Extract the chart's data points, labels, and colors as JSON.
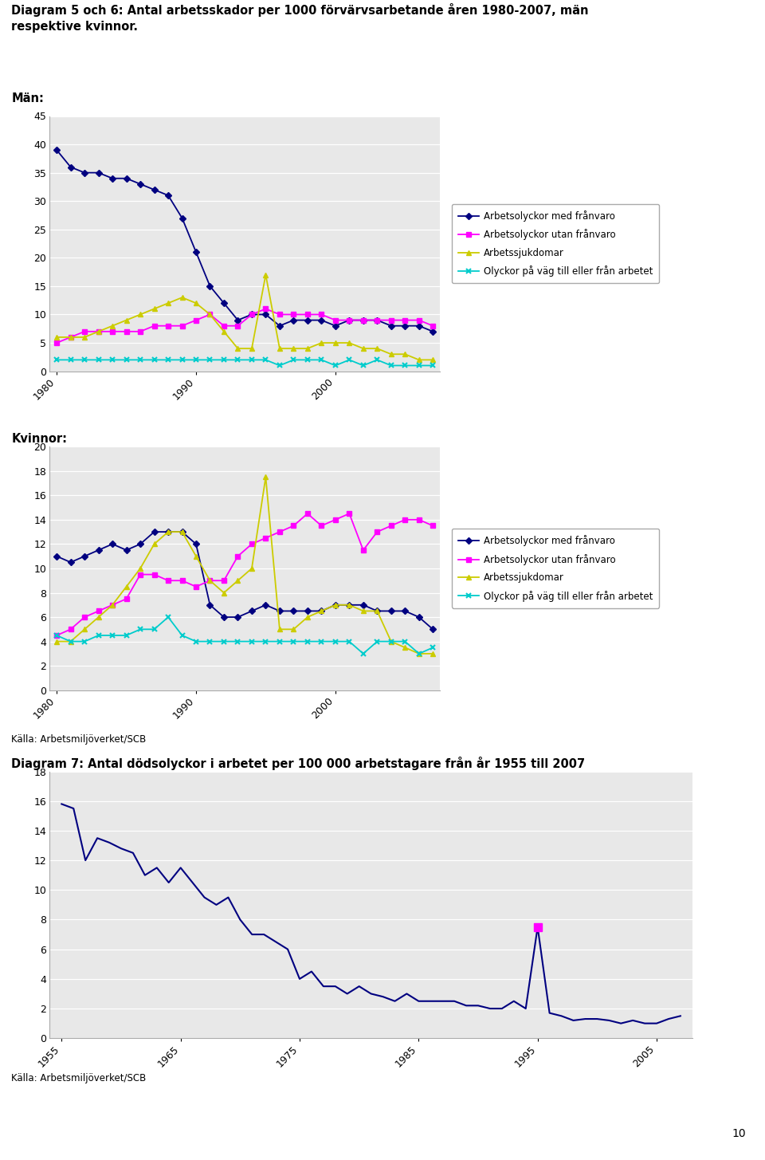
{
  "title_main": "Diagram 5 och 6: Antal arbetsskador per 1000 förvärvsarbetande åren 1980-2007, män\nrespektive kvinnor.",
  "label_man": "Män:",
  "label_kvinna": "Kvinnor:",
  "legend_labels": [
    "Arbetsolyckor med frånvaro",
    "Arbetsolyckor utan frånvaro",
    "Arbetssjukdomar",
    "Olyckor på väg till eller från arbetet"
  ],
  "legend_colors": [
    "#000080",
    "#FF00FF",
    "#CCCC00",
    "#00CCCC"
  ],
  "legend_markers": [
    "D",
    "s",
    "^",
    "*"
  ],
  "years_man": [
    1980,
    1981,
    1982,
    1983,
    1984,
    1985,
    1986,
    1987,
    1988,
    1989,
    1990,
    1991,
    1992,
    1993,
    1994,
    1995,
    1996,
    1997,
    1998,
    1999,
    2000,
    2001,
    2002,
    2003,
    2004,
    2005,
    2006,
    2007
  ],
  "man_med_franvaro": [
    39,
    36,
    35,
    35,
    34,
    34,
    33,
    32,
    31,
    27,
    21,
    15,
    12,
    9,
    10,
    10,
    8,
    9,
    9,
    9,
    8,
    9,
    9,
    9,
    8,
    8,
    8,
    7
  ],
  "man_utan_franvaro": [
    5,
    6,
    7,
    7,
    7,
    7,
    7,
    8,
    8,
    8,
    9,
    10,
    8,
    8,
    10,
    11,
    10,
    10,
    10,
    10,
    9,
    9,
    9,
    9,
    9,
    9,
    9,
    8
  ],
  "man_arbetssjukdomar": [
    6,
    6,
    6,
    7,
    8,
    9,
    10,
    11,
    12,
    13,
    12,
    10,
    7,
    4,
    4,
    17,
    4,
    4,
    4,
    5,
    5,
    5,
    4,
    4,
    3,
    3,
    2,
    2
  ],
  "man_olyckor_vag": [
    2,
    2,
    2,
    2,
    2,
    2,
    2,
    2,
    2,
    2,
    2,
    2,
    2,
    2,
    2,
    2,
    1,
    2,
    2,
    2,
    1,
    2,
    1,
    2,
    1,
    1,
    1,
    1
  ],
  "man_ylim": [
    0,
    45
  ],
  "man_yticks": [
    0,
    5,
    10,
    15,
    20,
    25,
    30,
    35,
    40,
    45
  ],
  "years_kvinna": [
    1980,
    1981,
    1982,
    1983,
    1984,
    1985,
    1986,
    1987,
    1988,
    1989,
    1990,
    1991,
    1992,
    1993,
    1994,
    1995,
    1996,
    1997,
    1998,
    1999,
    2000,
    2001,
    2002,
    2003,
    2004,
    2005,
    2006,
    2007
  ],
  "kvinna_med_franvaro": [
    11,
    10.5,
    11,
    11.5,
    12,
    11.5,
    12,
    13,
    13,
    13,
    12,
    7,
    6,
    6,
    6.5,
    7,
    6.5,
    6.5,
    6.5,
    6.5,
    7,
    7,
    7,
    6.5,
    6.5,
    6.5,
    6,
    5
  ],
  "kvinna_utan_franvaro": [
    4.5,
    5,
    6,
    6.5,
    7,
    7.5,
    9.5,
    9.5,
    9,
    9,
    8.5,
    9,
    9,
    11,
    12,
    12.5,
    13,
    13.5,
    14.5,
    13.5,
    14,
    14.5,
    11.5,
    13,
    13.5,
    14,
    14,
    13.5
  ],
  "kvinna_arbetssjukdomar": [
    4,
    4,
    5,
    6,
    7,
    8.5,
    10,
    12,
    13,
    13,
    11,
    9,
    8,
    9,
    10,
    17.5,
    5,
    5,
    6,
    6.5,
    7,
    7,
    6.5,
    6.5,
    4,
    3.5,
    3,
    3
  ],
  "kvinna_olyckor_vag": [
    4.5,
    4,
    4,
    4.5,
    4.5,
    4.5,
    5,
    5,
    6,
    4.5,
    4,
    4,
    4,
    4,
    4,
    4,
    4,
    4,
    4,
    4,
    4,
    4,
    3,
    4,
    4,
    4,
    3,
    3.5
  ],
  "kvinna_ylim": [
    0,
    20
  ],
  "kvinna_yticks": [
    0,
    2,
    4,
    6,
    8,
    10,
    12,
    14,
    16,
    18,
    20
  ],
  "title_diag7": "Diagram 7: Antal dödsolyckor i arbetet per 100 000 arbetstagare från år 1955 till 2007",
  "years_diag7": [
    1955,
    1956,
    1957,
    1958,
    1959,
    1960,
    1961,
    1962,
    1963,
    1964,
    1965,
    1966,
    1967,
    1968,
    1969,
    1970,
    1971,
    1972,
    1973,
    1974,
    1975,
    1976,
    1977,
    1978,
    1979,
    1980,
    1981,
    1982,
    1983,
    1984,
    1985,
    1986,
    1987,
    1988,
    1989,
    1990,
    1991,
    1992,
    1993,
    1994,
    1995,
    1996,
    1997,
    1998,
    1999,
    2000,
    2001,
    2002,
    2003,
    2004,
    2005,
    2006,
    2007
  ],
  "diag7_values": [
    15.8,
    15.5,
    12.0,
    13.5,
    13.2,
    12.8,
    12.5,
    11.0,
    11.5,
    10.5,
    11.5,
    10.5,
    9.5,
    9.0,
    9.5,
    8.0,
    7.0,
    7.0,
    6.5,
    6.0,
    4.0,
    4.5,
    3.5,
    3.5,
    3.0,
    3.5,
    3.0,
    2.8,
    2.5,
    3.0,
    2.5,
    2.5,
    2.5,
    2.5,
    2.2,
    2.2,
    2.0,
    2.0,
    2.5,
    2.0,
    7.5,
    1.7,
    1.5,
    1.2,
    1.3,
    1.3,
    1.2,
    1.0,
    1.2,
    1.0,
    1.0,
    1.3,
    1.5
  ],
  "diag7_ylim": [
    0,
    18
  ],
  "diag7_yticks": [
    0,
    2,
    4,
    6,
    8,
    10,
    12,
    14,
    16,
    18
  ],
  "source_text": "Källa: Arbetsmiljöverket/SCB",
  "page_number": "10",
  "chart_line_color": "#000080",
  "chart_bg_color": "#E8E8E8",
  "grid_color": "#FFFFFF",
  "xtick_labels_charts12": [
    "1980",
    "1990",
    "2000"
  ],
  "xtick_pos_charts12": [
    1980,
    1990,
    2000
  ],
  "xtick_labels_diag7": [
    "1955",
    "1965",
    "1975",
    "1985",
    "1995",
    "2005"
  ],
  "xtick_pos_diag7": [
    1955,
    1965,
    1975,
    1985,
    1995,
    2005
  ]
}
